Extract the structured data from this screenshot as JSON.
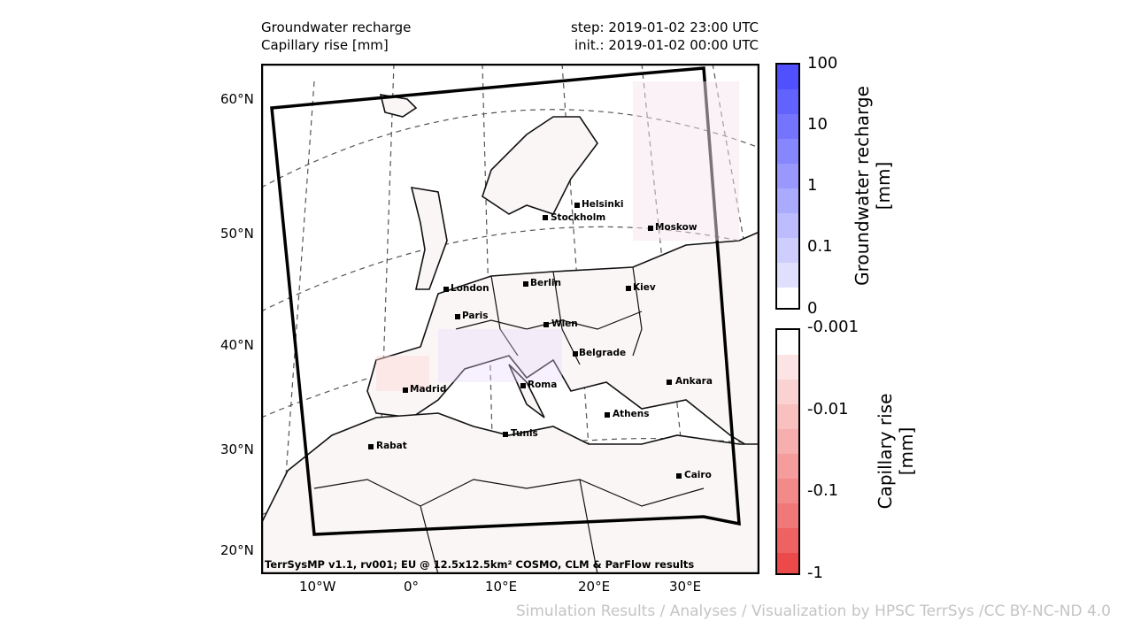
{
  "header": {
    "title_line1": "Groundwater recharge",
    "title_line2": "Capillary rise [mm]",
    "step": "step: 2019-01-02 23:00 UTC",
    "init": "init.: 2019-01-02 00:00 UTC"
  },
  "axes": {
    "lat_labels": [
      "60°N",
      "50°N",
      "40°N",
      "30°N",
      "20°N"
    ],
    "lon_labels": [
      "10°W",
      "0°",
      "10°E",
      "20°E",
      "30°E"
    ]
  },
  "cities": [
    {
      "name": "Helsinki"
    },
    {
      "name": "Stockholm"
    },
    {
      "name": "Moskow"
    },
    {
      "name": "London"
    },
    {
      "name": "Berlin"
    },
    {
      "name": "Kiev"
    },
    {
      "name": "Paris"
    },
    {
      "name": "Wien"
    },
    {
      "name": "Belgrade"
    },
    {
      "name": "Madrid"
    },
    {
      "name": "Roma"
    },
    {
      "name": "Ankara"
    },
    {
      "name": "Athens"
    },
    {
      "name": "Tunis"
    },
    {
      "name": "Rabat"
    },
    {
      "name": "Cairo"
    }
  ],
  "credit": "TerrSysMP v1.1, rv001; EU @ 12.5x12.5km² COSMO, CLM & ParFlow results",
  "colorbar_recharge": {
    "label_line1": "Groundwater recharge",
    "label_line2": "[mm]",
    "ticks": [
      "100",
      "10",
      "1",
      "0.1",
      "0"
    ],
    "color": "#3a3aff"
  },
  "colorbar_capillary": {
    "label_line1": "Capillary rise",
    "label_line2": "[mm]",
    "ticks": [
      "-0.001",
      "-0.01",
      "-0.1",
      "-1"
    ],
    "color": "#f04040"
  },
  "footer": "Simulation Results / Analyses / Visualization by HPSC TerrSys /CC BY-NC-ND 4.0"
}
